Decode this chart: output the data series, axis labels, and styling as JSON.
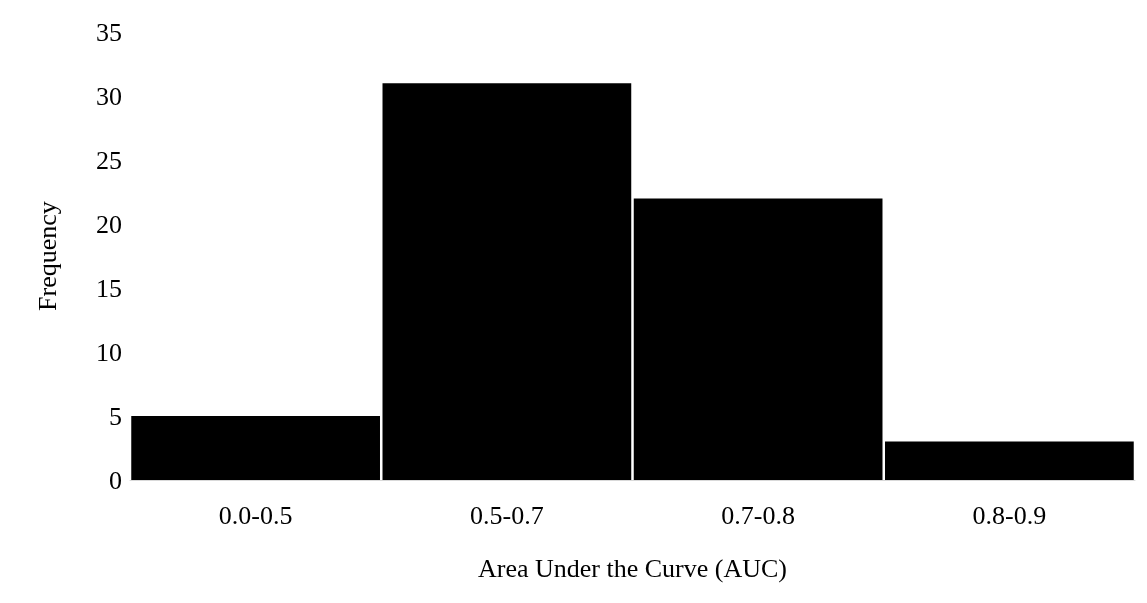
{
  "chart_data": {
    "type": "bar",
    "xlabel": "Area Under the Curve (AUC)",
    "ylabel": "Frequency",
    "categories": [
      "0.0-0.5",
      "0.5-0.7",
      "0.7-0.8",
      "0.8-0.9"
    ],
    "values": [
      5,
      31,
      22,
      3
    ],
    "color": "#000000",
    "ylim": [
      0,
      35
    ],
    "yticks": [
      0,
      5,
      10,
      15,
      20,
      25,
      30,
      35
    ],
    "grid": false
  }
}
